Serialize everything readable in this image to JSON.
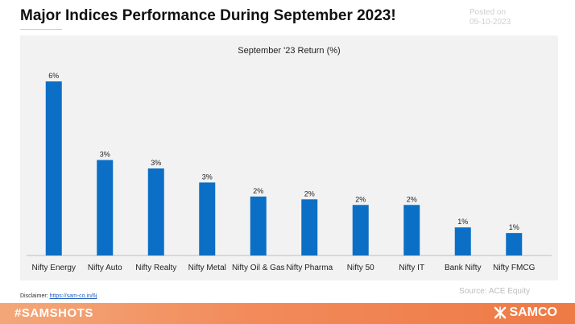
{
  "header": {
    "title": "Major Indices Performance During September 2023!",
    "posted_label": "Posted on",
    "posted_date": "05-10-2023"
  },
  "chart_data": {
    "type": "bar",
    "title": "September '23 Return (%)",
    "categories": [
      "Nifty Energy",
      "Nifty Auto",
      "Nifty Realty",
      "Nifty Metal",
      "Nifty Oil & Gas",
      "Nifty Pharma",
      "Nifty 50",
      "Nifty IT",
      "Bank Nifty",
      "Nifty FMCG"
    ],
    "values": [
      6.2,
      3.4,
      3.1,
      2.6,
      2.1,
      2.0,
      1.8,
      1.8,
      1.0,
      0.8
    ],
    "data_labels": [
      "6%",
      "3%",
      "3%",
      "3%",
      "2%",
      "2%",
      "2%",
      "2%",
      "1%",
      "1%"
    ],
    "xlabel": "",
    "ylabel": "",
    "ylim": [
      0,
      6.2
    ],
    "grid": false,
    "bar_color": "#0b6fc6"
  },
  "footer": {
    "source": "Source: ACE Equity",
    "disclaimer_label": "Disclaimer:",
    "disclaimer_link": "https://sam-co.in/6j",
    "hashtag": "#SAMSHOTS",
    "brand": "SAMCO",
    "brand_icon": "samco-logo-icon"
  }
}
